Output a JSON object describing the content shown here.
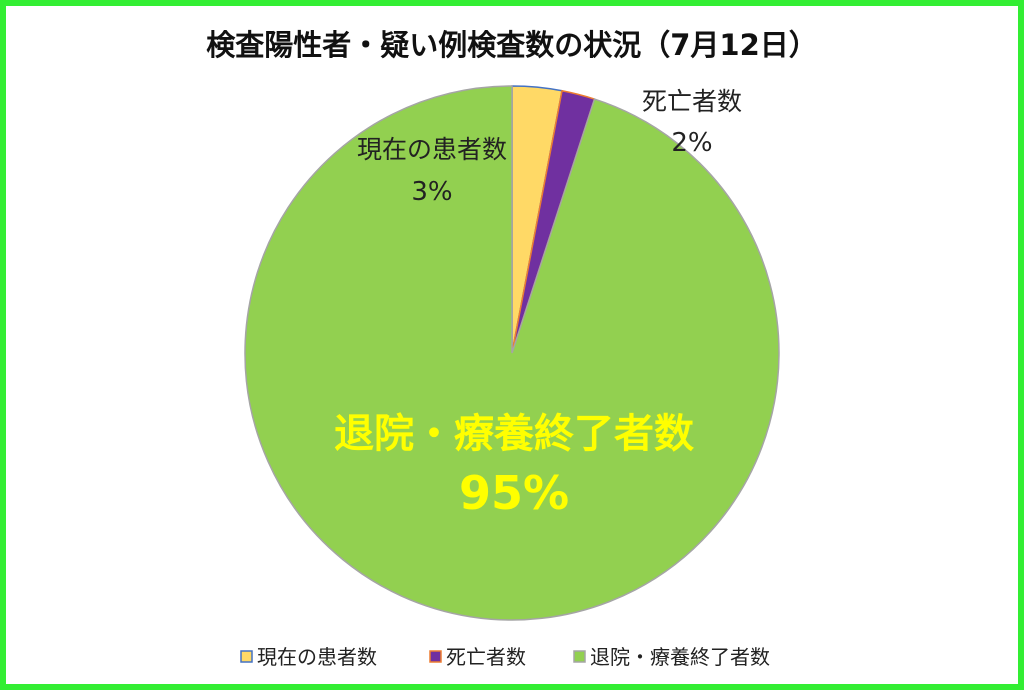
{
  "chart_data": {
    "type": "pie",
    "title": "検査陽性者・疑い例検査数の状況（7月12日）",
    "categories": [
      "現在の患者数",
      "死亡者数",
      "退院・療養終了者数"
    ],
    "values": [
      3,
      2,
      95
    ],
    "percent_labels": [
      "3%",
      "2%",
      "95%"
    ],
    "legend_labels": [
      "現在の患者数",
      "死亡者数",
      "退院・療養終了者数"
    ],
    "slice_fill_colors": [
      "#ffd966",
      "#7030a0",
      "#92d050"
    ],
    "slice_border_colors": [
      "#4472c4",
      "#ed7d31",
      "#a5a5a5"
    ],
    "label_colors": [
      "#222222",
      "#222222",
      "#ffff00"
    ],
    "legend_placement": "bottom",
    "start_angle_deg": 0,
    "direction": "clockwise"
  },
  "colors": {
    "frame_border": "#33ee33",
    "background": "#ffffff"
  }
}
